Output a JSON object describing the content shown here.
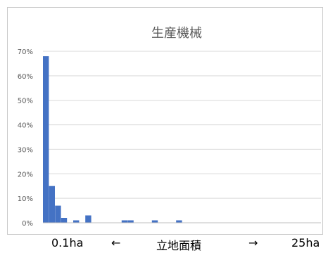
{
  "chart_data": {
    "type": "bar",
    "title": "生産機械",
    "ylim": [
      0,
      70
    ],
    "y_ticks": [
      "0%",
      "10%",
      "20%",
      "30%",
      "40%",
      "50%",
      "60%",
      "70%"
    ],
    "y_tick_values": [
      0,
      10,
      20,
      30,
      40,
      50,
      60,
      70
    ],
    "grid": true,
    "bar_color": "#4472C4",
    "bin_count": 60,
    "values": [
      68,
      15,
      7,
      2,
      0,
      1,
      0,
      3,
      0,
      0,
      0,
      0,
      0,
      1,
      1,
      0,
      0,
      0,
      1,
      0,
      0,
      0,
      1,
      0,
      0,
      0,
      0,
      0,
      0,
      0,
      0,
      0,
      0,
      0,
      0,
      0,
      0,
      0,
      0,
      0,
      0,
      0,
      0,
      0,
      0,
      0,
      0,
      0,
      0,
      0,
      0,
      0,
      0,
      0,
      0,
      0,
      0,
      0,
      0,
      0
    ],
    "x_caption": {
      "left": "0.1ha",
      "left_arrow": "←",
      "middle": "立地面積",
      "right_arrow": "→",
      "right": "25ha"
    }
  }
}
